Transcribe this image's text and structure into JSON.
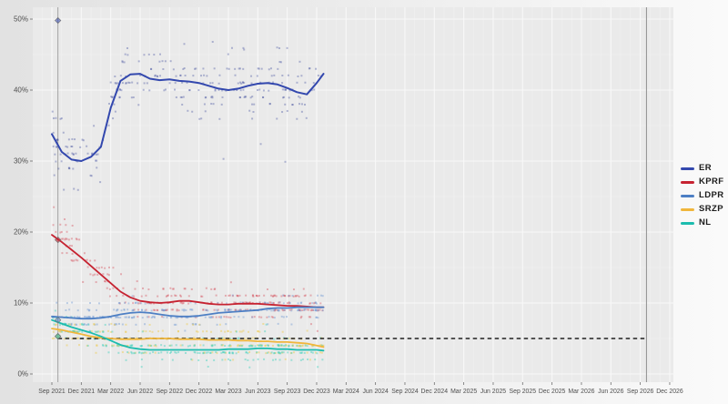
{
  "chart_data": {
    "type": "scatter",
    "title": "",
    "xlabel": "",
    "ylabel": "",
    "ylim": [
      0,
      52
    ],
    "x_tick_labels": [
      "Sep 2021",
      "Dec 2021",
      "Mar 2022",
      "Jun 2022",
      "Sep 2022",
      "Dec 2022",
      "Mar 2023",
      "Jun 2023",
      "Sep 2023",
      "Dec 2023",
      "Mar 2024",
      "Jun 2024",
      "Sep 2024",
      "Dec 2024",
      "Mar 2025",
      "Jun 2025",
      "Sep 2025",
      "Dec 2025",
      "Mar 2026",
      "Jun 2026",
      "Sep 2026",
      "Dec 2026"
    ],
    "y_tick_labels": [
      "0%",
      "10%",
      "20%",
      "30%",
      "40%",
      "50%"
    ],
    "y_tick_values": [
      0,
      10,
      20,
      30,
      40,
      50
    ],
    "legend_position": "right",
    "grid": true,
    "threshold_line": {
      "value": 5,
      "style": "dashed",
      "color": "#3c3c3c"
    },
    "vlines_t_months": [
      0.62,
      60.63
    ],
    "t_months": [
      0,
      1,
      2,
      3,
      4,
      5,
      6,
      7,
      8,
      9,
      10,
      11,
      12,
      13,
      14,
      15,
      16,
      17,
      18,
      19,
      20,
      21,
      22,
      23,
      24,
      25,
      26,
      27,
      27.7
    ],
    "series": [
      {
        "name": "ER",
        "color": "#3348ae",
        "scatter_color": "#41509f",
        "scatter_alpha": 0.38,
        "scatter_n": 280,
        "scatter_sd": 2.1,
        "values": [
          33.8,
          31.3,
          30.2,
          30.0,
          30.6,
          32.0,
          37.5,
          41.3,
          42.2,
          42.3,
          41.6,
          41.4,
          41.5,
          41.3,
          41.2,
          41.0,
          40.6,
          40.2,
          40.0,
          40.2,
          40.6,
          40.9,
          41.0,
          40.8,
          40.3,
          39.7,
          39.4,
          41.0,
          42.3
        ],
        "result_2021": 49.8
      },
      {
        "name": "KPRF",
        "color": "#c62331",
        "scatter_color": "#d2434e",
        "scatter_alpha": 0.38,
        "scatter_n": 280,
        "scatter_sd": 1.15,
        "values": [
          19.6,
          18.6,
          17.5,
          16.4,
          15.2,
          14.0,
          12.8,
          11.6,
          10.8,
          10.3,
          10.1,
          10.0,
          10.1,
          10.3,
          10.3,
          10.1,
          9.9,
          9.8,
          9.8,
          9.9,
          9.9,
          9.9,
          9.8,
          9.7,
          9.6,
          9.6,
          9.5,
          9.4,
          9.4
        ],
        "result_2021": 18.9
      },
      {
        "name": "LDPR",
        "color": "#4d7fc4",
        "scatter_color": "#6b97d2",
        "scatter_alpha": 0.42,
        "scatter_n": 250,
        "scatter_sd": 0.95,
        "values": [
          8.1,
          8.0,
          7.9,
          7.8,
          7.8,
          7.9,
          8.1,
          8.4,
          8.6,
          8.7,
          8.6,
          8.4,
          8.2,
          8.1,
          8.1,
          8.2,
          8.4,
          8.6,
          8.7,
          8.8,
          8.9,
          9.0,
          9.2,
          9.3,
          9.3,
          9.4,
          9.4,
          9.4,
          9.4
        ],
        "result_2021": 7.6
      },
      {
        "name": "SRZP",
        "color": "#f0b63c",
        "scatter_color": "#eecb54",
        "scatter_alpha": 0.5,
        "scatter_n": 250,
        "scatter_sd": 0.95,
        "values": [
          6.4,
          6.2,
          5.9,
          5.6,
          5.3,
          5.1,
          5.0,
          4.9,
          4.9,
          4.9,
          5.0,
          5.0,
          5.0,
          4.9,
          4.9,
          4.9,
          4.8,
          4.8,
          4.8,
          4.7,
          4.7,
          4.6,
          4.6,
          4.5,
          4.5,
          4.4,
          4.3,
          4.0,
          3.8
        ],
        "result_2021": 5.3
      },
      {
        "name": "NL",
        "color": "#1cbcae",
        "scatter_color": "#3fd0bd",
        "scatter_alpha": 0.45,
        "scatter_n": 250,
        "scatter_sd": 0.95,
        "values": [
          7.6,
          7.1,
          6.6,
          6.2,
          5.8,
          5.3,
          4.7,
          4.1,
          3.7,
          3.5,
          3.4,
          3.4,
          3.4,
          3.4,
          3.4,
          3.4,
          3.4,
          3.4,
          3.5,
          3.5,
          3.5,
          3.6,
          3.6,
          3.5,
          3.5,
          3.4,
          3.4,
          3.4,
          3.3
        ],
        "result_2021": 5.3
      }
    ],
    "extra_points": {
      "ER": [
        [
          7.7,
          45.9
        ],
        [
          13.5,
          46.5
        ],
        [
          16.4,
          46.8
        ],
        [
          19.6,
          45.7
        ],
        [
          23.2,
          45.9
        ],
        [
          17.5,
          30.3
        ],
        [
          21.3,
          32.4
        ],
        [
          23.8,
          29.9
        ]
      ],
      "KPRF": [
        [
          0.2,
          23.5
        ],
        [
          1.3,
          21.8
        ],
        [
          2.1,
          20.9
        ]
      ]
    },
    "result_markers_note": "diamond markers on the Sep 2021 election line",
    "seed": 20210919
  },
  "legend": {
    "items": [
      "ER",
      "KPRF",
      "LDPR",
      "SRZP",
      "NL"
    ]
  }
}
